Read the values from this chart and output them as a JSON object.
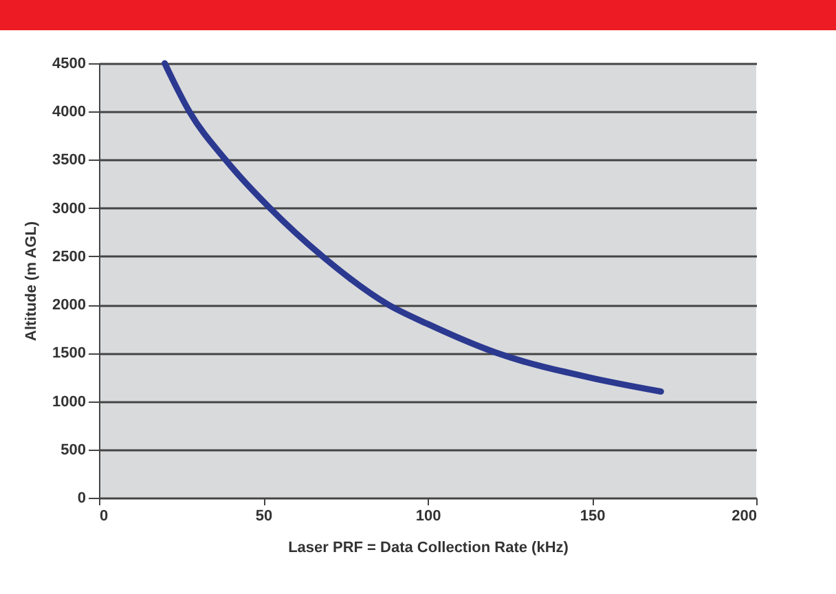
{
  "chart_data": {
    "type": "line",
    "xlabel": "Laser PRF = Data Collection Rate (kHz)",
    "ylabel": "Altitude (m AGL)",
    "x": [
      20,
      27.5,
      38.5,
      52,
      68,
      88,
      100,
      121,
      150,
      171
    ],
    "series": [
      {
        "color": "#2b3990",
        "values": [
          4500,
          4000,
          3500,
          3000,
          2500,
          2000,
          1800,
          1500,
          1240,
          1100
        ]
      }
    ],
    "xlim": [
      0,
      200
    ],
    "xticks": [
      0,
      50,
      100,
      150,
      200
    ],
    "ylim": [
      0,
      4500
    ],
    "yticks": [
      0,
      500,
      1000,
      1500,
      2000,
      2500,
      3000,
      3500,
      4000,
      4500
    ],
    "grid": "y",
    "marker": "none",
    "line_style": "solid"
  }
}
